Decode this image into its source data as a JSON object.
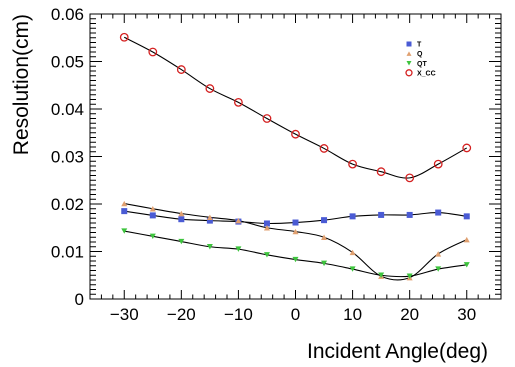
{
  "chart_data": {
    "type": "scatter",
    "title": "",
    "xlabel": "Incident Angle(deg)",
    "ylabel": "Resolution(cm)",
    "xlim": [
      -36,
      36
    ],
    "ylim": [
      0,
      0.06
    ],
    "xticks": [
      -30,
      -20,
      -10,
      0,
      10,
      20,
      30
    ],
    "xtick_labels": [
      "−30",
      "−20",
      "−10",
      "0",
      "10",
      "20",
      "30"
    ],
    "yticks": [
      0,
      0.01,
      0.02,
      0.03,
      0.04,
      0.05,
      0.06
    ],
    "ytick_labels": [
      "0",
      "0.01",
      "0.02",
      "0.03",
      "0.04",
      "0.05",
      "0.06"
    ],
    "grid": false,
    "legend_position": "top-right",
    "x": [
      -30,
      -25,
      -20,
      -15,
      -10,
      -5,
      0,
      5,
      10,
      15,
      20,
      25,
      30
    ],
    "series": [
      {
        "name": "T",
        "marker": "square",
        "color": "#4a5bd4",
        "values": [
          0.0185,
          0.0176,
          0.0168,
          0.0165,
          0.0163,
          0.0159,
          0.0161,
          0.0166,
          0.0174,
          0.0177,
          0.0177,
          0.0182,
          0.0174
        ]
      },
      {
        "name": "Q",
        "marker": "triangle-up",
        "color": "#e0a070",
        "values": [
          0.0201,
          0.019,
          0.018,
          0.0172,
          0.0165,
          0.015,
          0.0142,
          0.013,
          0.0098,
          0.0048,
          0.0045,
          0.0095,
          0.0125
        ]
      },
      {
        "name": "QT",
        "marker": "triangle-down",
        "color": "#3ec43e",
        "values": [
          0.0143,
          0.0132,
          0.0121,
          0.011,
          0.0105,
          0.0093,
          0.0083,
          0.0075,
          0.0063,
          0.005,
          0.0048,
          0.0063,
          0.0072
        ]
      },
      {
        "name": "X_CC",
        "marker": "circle-open",
        "color": "#d42020",
        "values": [
          0.0551,
          0.052,
          0.0483,
          0.0443,
          0.0414,
          0.038,
          0.0347,
          0.0317,
          0.0284,
          0.0268,
          0.0255,
          0.0284,
          0.0318
        ]
      }
    ]
  }
}
